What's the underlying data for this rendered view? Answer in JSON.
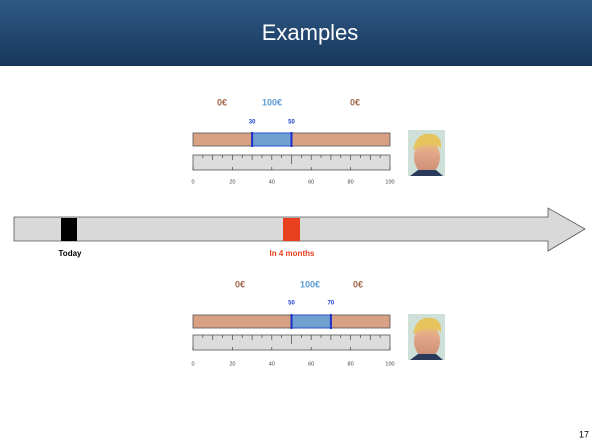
{
  "header": {
    "title": "Examples"
  },
  "examples": [
    {
      "left_label": "0€",
      "mid_label": "100€",
      "right_label": "0€",
      "range_start": 30,
      "range_end": 50,
      "scale_ticks": [
        0,
        20,
        40,
        60,
        80,
        100
      ]
    },
    {
      "left_label": "0€",
      "mid_label": "100€",
      "right_label": "0€",
      "range_start": 50,
      "range_end": 70,
      "scale_ticks": [
        0,
        20,
        40,
        60,
        80,
        100
      ]
    }
  ],
  "timeline": {
    "today": "Today",
    "later": "In 4 months"
  },
  "page_number": "17"
}
